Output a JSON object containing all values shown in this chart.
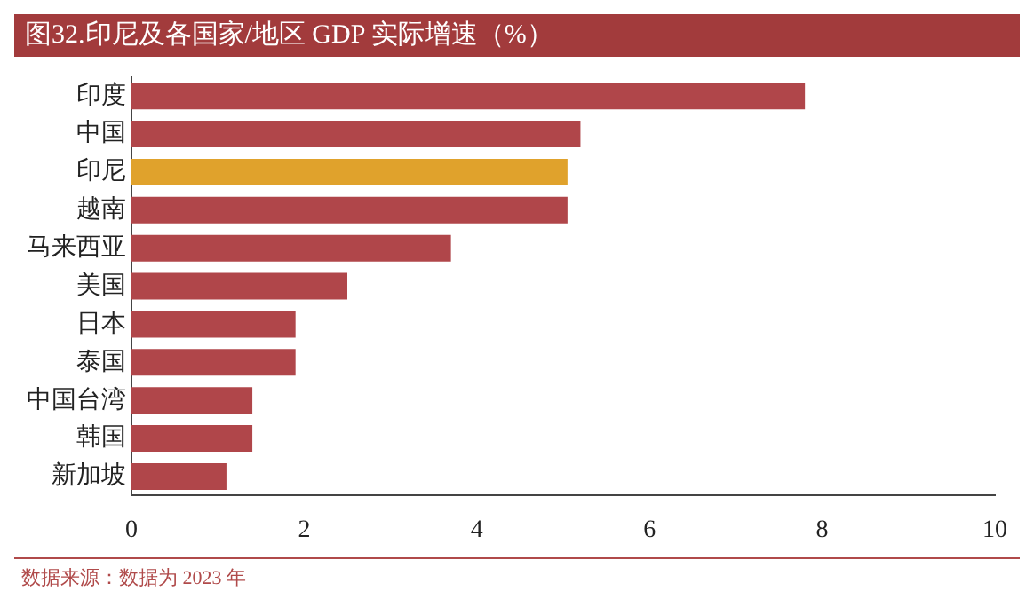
{
  "chart_data": {
    "type": "bar",
    "orientation": "horizontal",
    "title": "图32.印尼及各国家/地区 GDP 实际增速（%）",
    "categories": [
      "印度",
      "中国",
      "印尼",
      "越南",
      "马来西亚",
      "美国",
      "日本",
      "泰国",
      "中国台湾",
      "韩国",
      "新加坡"
    ],
    "values": [
      7.8,
      5.2,
      5.05,
      5.05,
      3.7,
      2.5,
      1.9,
      1.9,
      1.4,
      1.4,
      1.1
    ],
    "colors": [
      "#b0464a",
      "#b0464a",
      "#e0a22c",
      "#b0464a",
      "#b0464a",
      "#b0464a",
      "#b0464a",
      "#b0464a",
      "#b0464a",
      "#b0464a",
      "#b0464a"
    ],
    "xlim": [
      0,
      10
    ],
    "xticks": [
      0,
      2,
      4,
      6,
      8,
      10
    ],
    "grid": false,
    "annotations": [
      "数据来源：数据为 2023 年"
    ]
  }
}
